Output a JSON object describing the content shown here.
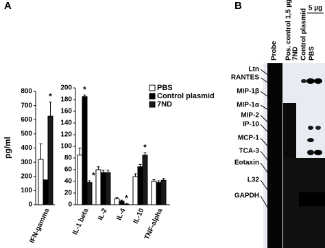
{
  "panel_labels": [
    "A",
    "B"
  ],
  "chart_data": [
    {
      "type": "bar",
      "y_label": "pg/ml",
      "categories": [
        "IFN-gamma"
      ],
      "ylim": [
        0,
        800
      ],
      "yticks": [
        0,
        100,
        200,
        300,
        400,
        500,
        600,
        700,
        800
      ],
      "series": [
        {
          "color": "#ffffff",
          "values": [
            320
          ],
          "errors": [
            110
          ],
          "annotations": [
            null
          ]
        },
        {
          "color": "#000000",
          "values": [
            175
          ],
          "errors": [
            0
          ],
          "annotations": [
            null
          ]
        },
        {
          "color": "#1a1a1a",
          "values": [
            625
          ],
          "errors": [
            100
          ],
          "annotations": [
            "*"
          ]
        }
      ]
    },
    {
      "type": "bar",
      "legend": "top-right",
      "categories": [
        "IL-1 beta",
        "IL-2",
        "IL-4",
        "IL-10",
        "TNF-alpha"
      ],
      "ylim": [
        0,
        200
      ],
      "yticks": [
        0,
        20,
        40,
        60,
        80,
        100,
        120,
        140,
        160,
        180,
        200
      ],
      "series": [
        {
          "name": "PBS",
          "color": "#ffffff",
          "values": [
            85,
            60,
            10,
            48,
            40
          ],
          "errors": [
            12,
            5,
            2,
            5,
            3
          ],
          "annotations": [
            null,
            null,
            null,
            null,
            null
          ]
        },
        {
          "name": "Control plasmid",
          "color": "#000000",
          "values": [
            185,
            55,
            6,
            65,
            38
          ],
          "errors": [
            3,
            4,
            2,
            4,
            3
          ],
          "annotations": [
            "*",
            null,
            null,
            null,
            null
          ]
        },
        {
          "name": "7ND",
          "color": "#1a1a1a",
          "values": [
            38,
            55,
            1,
            85,
            42
          ],
          "errors": [
            3,
            4,
            1,
            4,
            3
          ],
          "annotations": [
            "*",
            null,
            "*",
            "*",
            null
          ]
        }
      ]
    }
  ],
  "blot": {
    "dose": "5 µg",
    "lanes": [
      "Probe",
      "Pos. control 1,5 µg",
      "7ND",
      "Control plasmid",
      "PBS"
    ],
    "bands": [
      "Ltn",
      "RANTES",
      "MIP-1β",
      "MIP-1α",
      "MIP-2",
      "IP-10",
      "MCP-1",
      "TCA-3",
      "Eotaxin",
      "L32",
      "GAPDH"
    ]
  }
}
